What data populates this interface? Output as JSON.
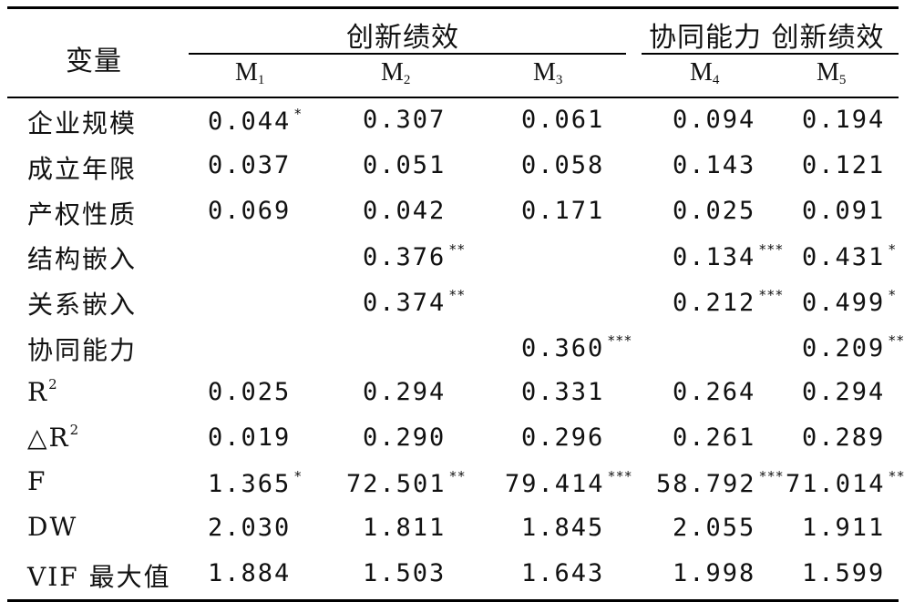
{
  "header": {
    "variable_label": "变量",
    "group_innovation": "创新绩效",
    "group_synergy_innovation": "协同能力 创新绩效",
    "models": [
      {
        "letter": "M",
        "sub": "1"
      },
      {
        "letter": "M",
        "sub": "2"
      },
      {
        "letter": "M",
        "sub": "3"
      },
      {
        "letter": "M",
        "sub": "4"
      },
      {
        "letter": "M",
        "sub": "5"
      }
    ]
  },
  "rows": [
    {
      "label": "企业规模",
      "cells": [
        {
          "v": "0.044",
          "s": "*"
        },
        {
          "v": "0.307",
          "s": ""
        },
        {
          "v": "0.061",
          "s": ""
        },
        {
          "v": "0.094",
          "s": ""
        },
        {
          "v": "0.194",
          "s": ""
        }
      ]
    },
    {
      "label": "成立年限",
      "cells": [
        {
          "v": "0.037",
          "s": ""
        },
        {
          "v": "0.051",
          "s": ""
        },
        {
          "v": "0.058",
          "s": ""
        },
        {
          "v": "0.143",
          "s": ""
        },
        {
          "v": "0.121",
          "s": ""
        }
      ]
    },
    {
      "label": "产权性质",
      "cells": [
        {
          "v": "0.069",
          "s": ""
        },
        {
          "v": "0.042",
          "s": ""
        },
        {
          "v": "0.171",
          "s": ""
        },
        {
          "v": "0.025",
          "s": ""
        },
        {
          "v": "0.091",
          "s": ""
        }
      ]
    },
    {
      "label": "结构嵌入",
      "cells": [
        {
          "v": "",
          "s": ""
        },
        {
          "v": "0.376",
          "s": "**"
        },
        {
          "v": "",
          "s": ""
        },
        {
          "v": "0.134",
          "s": "***"
        },
        {
          "v": "0.431",
          "s": "*"
        }
      ]
    },
    {
      "label": "关系嵌入",
      "cells": [
        {
          "v": "",
          "s": ""
        },
        {
          "v": "0.374",
          "s": "**"
        },
        {
          "v": "",
          "s": ""
        },
        {
          "v": "0.212",
          "s": "***"
        },
        {
          "v": "0.499",
          "s": "*"
        }
      ]
    },
    {
      "label": "协同能力",
      "cells": [
        {
          "v": "",
          "s": ""
        },
        {
          "v": "",
          "s": ""
        },
        {
          "v": "0.360",
          "s": "***"
        },
        {
          "v": "",
          "s": ""
        },
        {
          "v": "0.209",
          "s": "**"
        }
      ]
    },
    {
      "label": "R",
      "label_sup": "2",
      "cells": [
        {
          "v": "0.025",
          "s": ""
        },
        {
          "v": "0.294",
          "s": ""
        },
        {
          "v": "0.331",
          "s": ""
        },
        {
          "v": "0.264",
          "s": ""
        },
        {
          "v": "0.294",
          "s": ""
        }
      ]
    },
    {
      "label": "△R",
      "label_sup": "2",
      "cells": [
        {
          "v": "0.019",
          "s": ""
        },
        {
          "v": "0.290",
          "s": ""
        },
        {
          "v": "0.296",
          "s": ""
        },
        {
          "v": "0.261",
          "s": ""
        },
        {
          "v": "0.289",
          "s": ""
        }
      ]
    },
    {
      "label": "F",
      "cells": [
        {
          "v": "1.365",
          "s": "*"
        },
        {
          "v": "72.501",
          "s": "**"
        },
        {
          "v": "79.414",
          "s": "***"
        },
        {
          "v": "58.792",
          "s": "***"
        },
        {
          "v": "71.014",
          "s": "**"
        }
      ]
    },
    {
      "label": "DW",
      "cells": [
        {
          "v": "2.030",
          "s": ""
        },
        {
          "v": "1.811",
          "s": ""
        },
        {
          "v": "1.845",
          "s": ""
        },
        {
          "v": "2.055",
          "s": ""
        },
        {
          "v": "1.911",
          "s": ""
        }
      ]
    },
    {
      "label": "VIF 最大值",
      "cells": [
        {
          "v": "1.884",
          "s": ""
        },
        {
          "v": "1.503",
          "s": ""
        },
        {
          "v": "1.643",
          "s": ""
        },
        {
          "v": "1.998",
          "s": ""
        },
        {
          "v": "1.599",
          "s": ""
        }
      ]
    }
  ]
}
